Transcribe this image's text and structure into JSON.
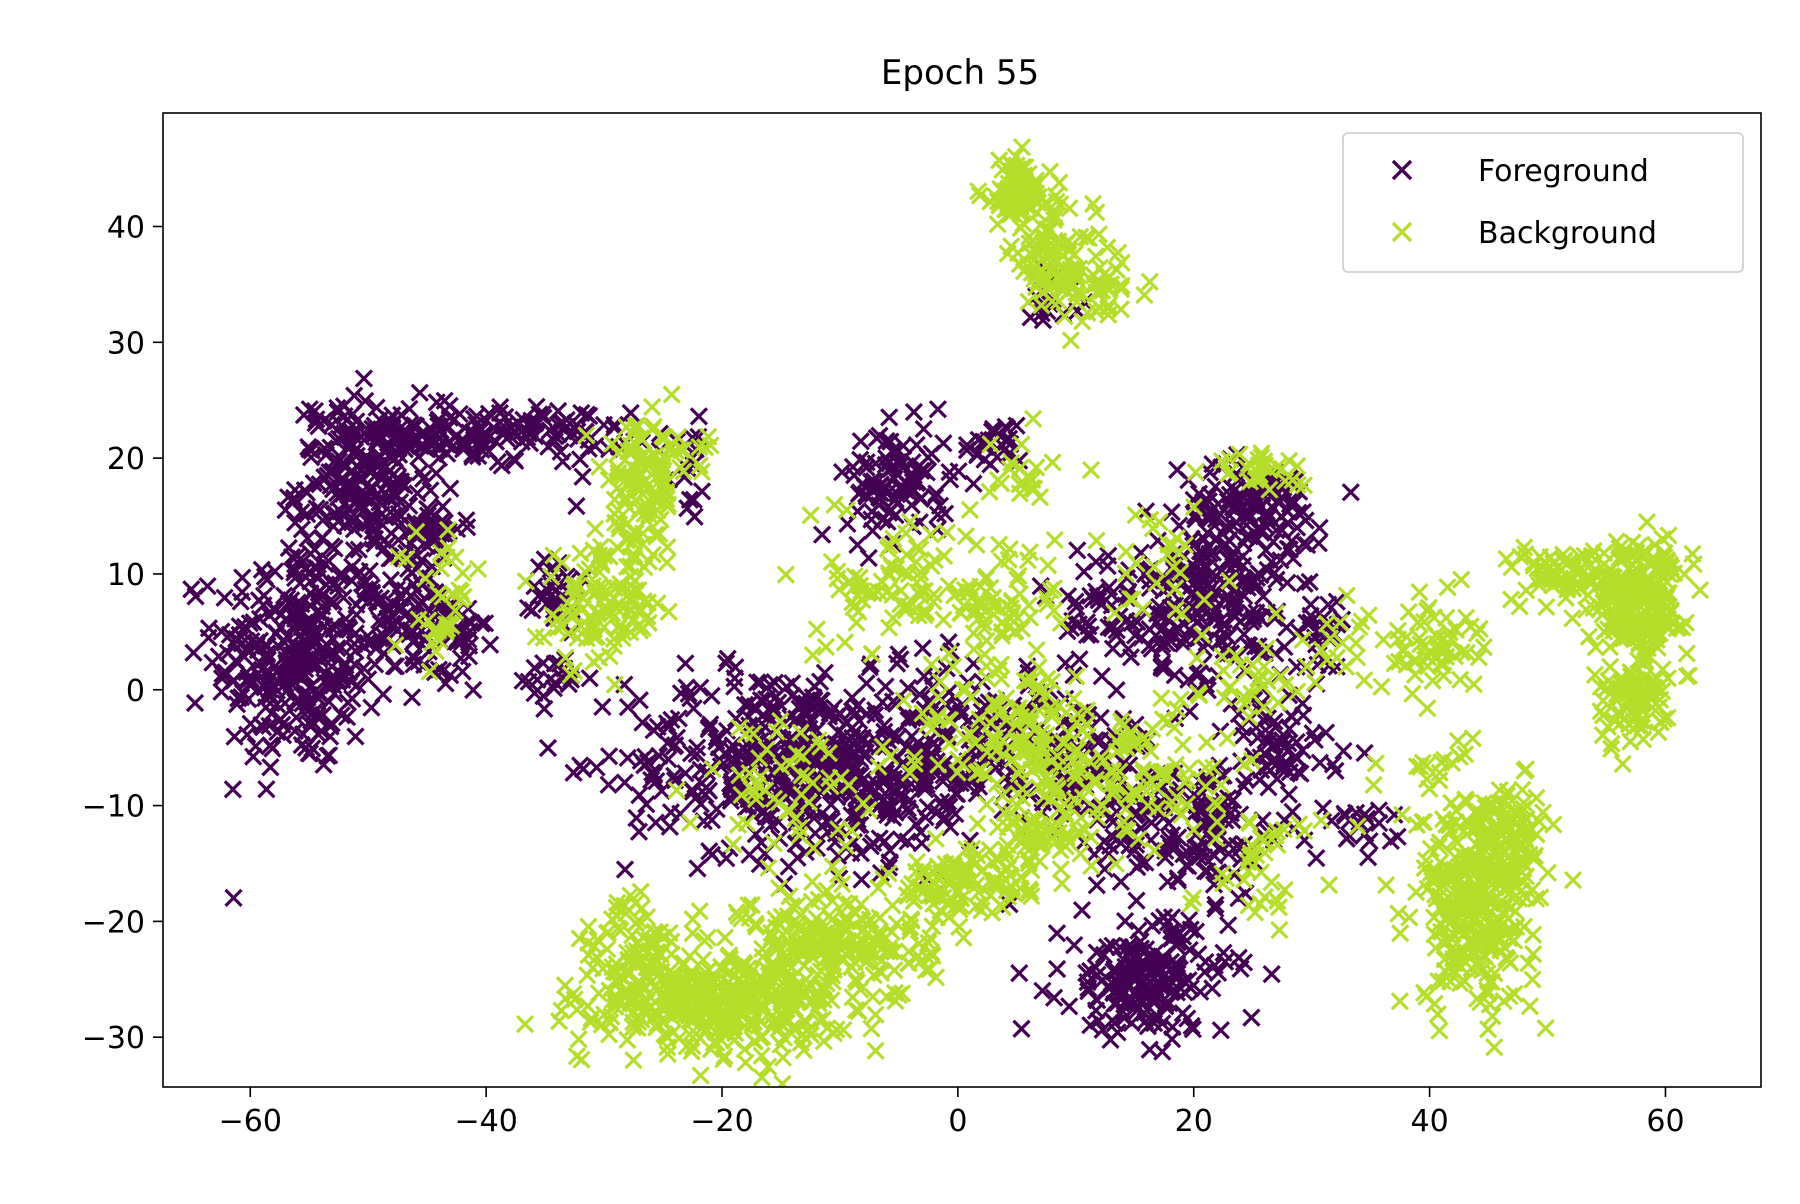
{
  "chart_data": {
    "type": "scatter",
    "title": "Epoch 55",
    "xlabel": "",
    "ylabel": "",
    "xlim": [
      -67.4,
      68.1
    ],
    "ylim": [
      -34.3,
      49.8
    ],
    "xticks": [
      -60,
      -40,
      -20,
      0,
      20,
      40,
      60
    ],
    "yticks": [
      -30,
      -20,
      -10,
      0,
      10,
      20,
      30,
      40
    ],
    "grid": false,
    "legend_position": "top-right",
    "marker": "x",
    "series": [
      {
        "name": "Foreground",
        "color": "#440154",
        "clusters": [
          {
            "cx": -56,
            "cy": 3,
            "sx": 3.5,
            "sy": 5,
            "n": 320
          },
          {
            "cx": -50,
            "cy": 18,
            "sx": 3,
            "sy": 3.5,
            "n": 220
          },
          {
            "cx": -40,
            "cy": 22,
            "sx": 6,
            "sy": 1.2,
            "n": 160
          },
          {
            "cx": -47,
            "cy": 7,
            "sx": 2.5,
            "sy": 3,
            "n": 90
          },
          {
            "cx": -43,
            "cy": 4,
            "sx": 1.5,
            "sy": 2.5,
            "n": 40
          },
          {
            "cx": -45,
            "cy": 14,
            "sx": 1.5,
            "sy": 1,
            "n": 40
          },
          {
            "cx": -34,
            "cy": 9,
            "sx": 1,
            "sy": 2,
            "n": 30
          },
          {
            "cx": -34,
            "cy": 1,
            "sx": 1.5,
            "sy": 1.2,
            "n": 20
          },
          {
            "cx": -23,
            "cy": 18,
            "sx": 1,
            "sy": 2,
            "n": 15
          },
          {
            "cx": -16,
            "cy": -6,
            "sx": 6,
            "sy": 4,
            "n": 320
          },
          {
            "cx": -6,
            "cy": -7,
            "sx": 5,
            "sy": 4,
            "n": 240
          },
          {
            "cx": -5,
            "cy": 18,
            "sx": 2.2,
            "sy": 2.5,
            "n": 110
          },
          {
            "cx": 3,
            "cy": 21,
            "sx": 1.2,
            "sy": 1,
            "n": 25
          },
          {
            "cx": 2,
            "cy": -3,
            "sx": 3,
            "sy": 3,
            "n": 60
          },
          {
            "cx": 10,
            "cy": -6,
            "sx": 3.5,
            "sy": 3,
            "n": 110
          },
          {
            "cx": 13,
            "cy": 7,
            "sx": 3,
            "sy": 3,
            "n": 60
          },
          {
            "cx": 22,
            "cy": 8,
            "sx": 3,
            "sy": 4,
            "n": 210
          },
          {
            "cx": 25,
            "cy": 16,
            "sx": 3,
            "sy": 1.8,
            "n": 110
          },
          {
            "cx": 20,
            "cy": -12,
            "sx": 4,
            "sy": 3,
            "n": 140
          },
          {
            "cx": 27,
            "cy": -5,
            "sx": 2.5,
            "sy": 2.5,
            "n": 60
          },
          {
            "cx": 16,
            "cy": -25,
            "sx": 3.5,
            "sy": 2.5,
            "n": 190
          },
          {
            "cx": 34,
            "cy": -12,
            "sx": 1.5,
            "sy": 1,
            "n": 20
          },
          {
            "cx": 8,
            "cy": 34,
            "sx": 1.3,
            "sy": 1.3,
            "n": 15
          },
          {
            "cx": 31,
            "cy": 5,
            "sx": 1.5,
            "sy": 1.5,
            "n": 25
          }
        ]
      },
      {
        "name": "Background",
        "color": "#b5de2b",
        "clusters": [
          {
            "cx": 5,
            "cy": 43,
            "sx": 1.5,
            "sy": 1.5,
            "n": 90
          },
          {
            "cx": 8,
            "cy": 37,
            "sx": 1.8,
            "sy": 2.2,
            "n": 80
          },
          {
            "cx": 12,
            "cy": 35,
            "sx": 1.8,
            "sy": 1.2,
            "n": 40
          },
          {
            "cx": -27,
            "cy": 17,
            "sx": 1.5,
            "sy": 3,
            "n": 110
          },
          {
            "cx": -30,
            "cy": 7,
            "sx": 2.5,
            "sy": 2.5,
            "n": 110
          },
          {
            "cx": -23,
            "cy": 20,
            "sx": 2,
            "sy": 1,
            "n": 20
          },
          {
            "cx": -43,
            "cy": 9,
            "sx": 1.5,
            "sy": 2,
            "n": 25
          },
          {
            "cx": -45,
            "cy": 5,
            "sx": 1,
            "sy": 1,
            "n": 10
          },
          {
            "cx": -20,
            "cy": -27,
            "sx": 5,
            "sy": 2,
            "n": 360
          },
          {
            "cx": -10,
            "cy": -22,
            "sx": 4,
            "sy": 2.5,
            "n": 210
          },
          {
            "cx": -27,
            "cy": -24,
            "sx": 2.5,
            "sy": 3,
            "n": 110
          },
          {
            "cx": 0,
            "cy": -17,
            "sx": 3,
            "sy": 1.5,
            "n": 90
          },
          {
            "cx": 7,
            "cy": -13,
            "sx": 2.5,
            "sy": 1.5,
            "n": 60
          },
          {
            "cx": 44,
            "cy": -18,
            "sx": 2.5,
            "sy": 4.5,
            "n": 320
          },
          {
            "cx": 47,
            "cy": -12,
            "sx": 1.5,
            "sy": 2,
            "n": 60
          },
          {
            "cx": 58,
            "cy": 8,
            "sx": 2,
            "sy": 2.5,
            "n": 200
          },
          {
            "cx": 57,
            "cy": -1,
            "sx": 1.5,
            "sy": 2,
            "n": 90
          },
          {
            "cx": 52,
            "cy": 10,
            "sx": 2.5,
            "sy": 1.2,
            "n": 70
          },
          {
            "cx": 40,
            "cy": 4,
            "sx": 2,
            "sy": 2,
            "n": 60
          },
          {
            "cx": 39,
            "cy": -7,
            "sx": 2,
            "sy": 1,
            "n": 15
          },
          {
            "cx": 26,
            "cy": 19,
            "sx": 2,
            "sy": 1,
            "n": 30
          },
          {
            "cx": -5,
            "cy": 9,
            "sx": 3,
            "sy": 3,
            "n": 80
          },
          {
            "cx": 4,
            "cy": 8,
            "sx": 2.5,
            "sy": 3,
            "n": 60
          },
          {
            "cx": 5,
            "cy": -4,
            "sx": 4,
            "sy": 4,
            "n": 130
          },
          {
            "cx": 15,
            "cy": -7,
            "sx": 4,
            "sy": 3,
            "n": 100
          },
          {
            "cx": -15,
            "cy": -8,
            "sx": 4,
            "sy": 3,
            "n": 60
          },
          {
            "cx": 25,
            "cy": -14,
            "sx": 3,
            "sy": 3,
            "n": 40
          },
          {
            "cx": 17,
            "cy": 10,
            "sx": 2.5,
            "sy": 2.5,
            "n": 30
          },
          {
            "cx": 24,
            "cy": 2,
            "sx": 2,
            "sy": 2,
            "n": 25
          },
          {
            "cx": 6,
            "cy": 19,
            "sx": 2,
            "sy": 1.5,
            "n": 20
          },
          {
            "cx": 32,
            "cy": 3,
            "sx": 2.5,
            "sy": 2.5,
            "n": 20
          }
        ]
      }
    ]
  }
}
